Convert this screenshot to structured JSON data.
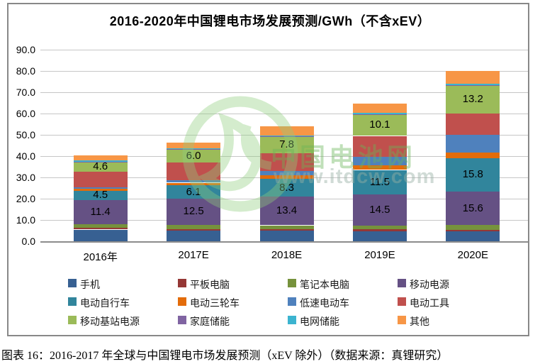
{
  "title": "2016-2020年中国锂电市场发展预测/GWh（不含xEV）",
  "caption": "图表 16：2016-2017 年全球与中国锂电市场发展预测（xEV 除外）（数据来源：真锂研究）",
  "watermark": {
    "brand": "中国电池网",
    "url": "www.itdcw.com",
    "logo": "green-globe-swirl-icon"
  },
  "chart_data": {
    "type": "bar",
    "stacked": true,
    "unit": "GWh",
    "title": "2016-2020年中国锂电市场发展预测/GWh（不含xEV）",
    "categories": [
      "2016年",
      "2017E",
      "2018E",
      "2019E",
      "2020E"
    ],
    "series": [
      {
        "name": "手机",
        "color": "#376092",
        "values": [
          5.5,
          4.9,
          4.9,
          4.7,
          4.6
        ]
      },
      {
        "name": "平板电脑",
        "color": "#953735",
        "values": [
          0.8,
          0.8,
          0.8,
          0.9,
          0.8
        ]
      },
      {
        "name": "笔记本电脑",
        "color": "#76923C",
        "values": [
          1.6,
          1.9,
          1.8,
          1.9,
          2.3
        ]
      },
      {
        "name": "移动电源",
        "color": "#655184",
        "values": [
          11.4,
          12.5,
          13.4,
          14.5,
          15.6
        ]
      },
      {
        "name": "电动自行车",
        "color": "#31859C",
        "values": [
          4.5,
          6.1,
          8.3,
          11.5,
          15.8
        ]
      },
      {
        "name": "电动三轮车",
        "color": "#E36C0A",
        "values": [
          0.9,
          1.3,
          1.9,
          2.1,
          2.7
        ]
      },
      {
        "name": "低速电动车",
        "color": "#4F81BD",
        "values": [
          0.5,
          1.3,
          1.9,
          4.2,
          8.3
        ]
      },
      {
        "name": "电动工具",
        "color": "#C0504D",
        "values": [
          7.5,
          8.3,
          8.3,
          9.7,
          9.9
        ]
      },
      {
        "name": "移动基站电源",
        "color": "#9BBB59",
        "values": [
          4.6,
          6.0,
          7.8,
          10.1,
          13.2
        ]
      },
      {
        "name": "家庭储能",
        "color": "#8064A2",
        "values": [
          0.1,
          0.1,
          0.1,
          0.1,
          0.1
        ]
      },
      {
        "name": "电网储能",
        "color": "#3CB4D0",
        "values": [
          0.6,
          0.6,
          0.6,
          0.5,
          0.7
        ]
      },
      {
        "name": "其他",
        "color": "#F79646",
        "values": [
          2.3,
          2.7,
          4.2,
          4.6,
          6.0
        ]
      }
    ],
    "labeled_series": [
      "移动电源",
      "电动自行车",
      "移动基站电源"
    ],
    "ylim": [
      0,
      90
    ],
    "ytick_step": 10,
    "ytick_format": "one-decimal",
    "grid": true,
    "legend_position": "bottom",
    "legend_columns": 4
  }
}
